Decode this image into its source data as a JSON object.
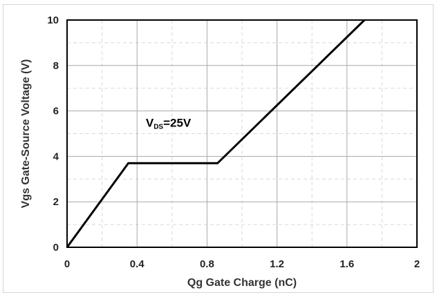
{
  "chart_data": {
    "type": "line",
    "title": "",
    "xlabel": "Qg Gate Charge (nC)",
    "ylabel": "Vgs Gate-Source Voltage (V)",
    "xlim": [
      0,
      2
    ],
    "ylim": [
      0,
      10
    ],
    "x_ticks": [
      0,
      0.4,
      0.8,
      1.2,
      1.6,
      2
    ],
    "x_tick_labels": [
      "0",
      "0.4",
      "0.8",
      "1.2",
      "1.6",
      "2"
    ],
    "y_ticks": [
      0,
      2,
      4,
      6,
      8,
      10
    ],
    "y_tick_labels": [
      "0",
      "2",
      "4",
      "6",
      "8",
      "10"
    ],
    "grid": true,
    "series": [
      {
        "x": [
          0,
          0.35,
          0.86,
          1.7
        ],
        "y": [
          0,
          3.7,
          3.7,
          10
        ],
        "color": "#000000"
      }
    ],
    "annotation": {
      "main": "V",
      "subscript": "DS",
      "suffix": "=25V",
      "x": 0.45,
      "y": 5.3
    }
  }
}
